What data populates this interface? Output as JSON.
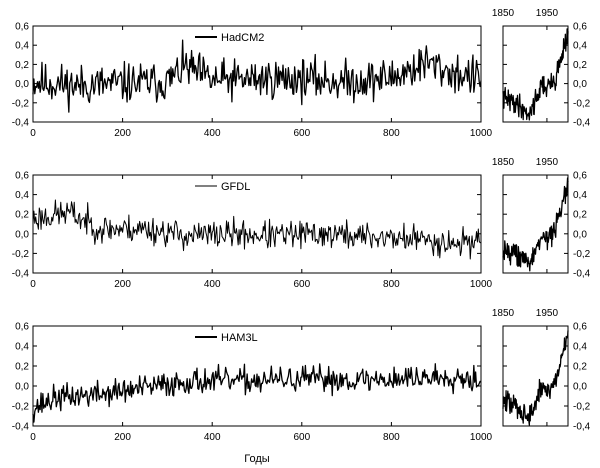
{
  "xlabel": "Годы",
  "chart_data": [
    {
      "type": "line",
      "series": [
        {
          "name": "HadCM2",
          "style": "thick"
        }
      ],
      "x_range": [
        0,
        1000
      ],
      "ylim": [
        -0.4,
        0.6
      ],
      "x_ticks": [
        "0",
        "200",
        "400",
        "600",
        "800",
        "1000"
      ],
      "y_ticks": [
        "-0,4",
        "-0,2",
        "0,0",
        "0,2",
        "0,4",
        "0,6"
      ],
      "profile": [
        [
          0,
          0.02
        ],
        [
          100,
          -0.02
        ],
        [
          200,
          0.0
        ],
        [
          300,
          0.02
        ],
        [
          340,
          0.18
        ],
        [
          400,
          0.03
        ],
        [
          500,
          0.05
        ],
        [
          600,
          0.05
        ],
        [
          700,
          0.02
        ],
        [
          800,
          0.06
        ],
        [
          880,
          0.22
        ],
        [
          930,
          0.12
        ],
        [
          1000,
          0.05
        ]
      ],
      "noise": 0.13,
      "seed": 11
    },
    {
      "type": "line",
      "series": [
        {
          "name": "GFDL",
          "style": "thin"
        }
      ],
      "x_range": [
        0,
        1000
      ],
      "ylim": [
        -0.4,
        0.6
      ],
      "x_ticks": [
        "0",
        "200",
        "400",
        "600",
        "800",
        "1000"
      ],
      "y_ticks": [
        "-0,4",
        "-0,2",
        "0,0",
        "0,2",
        "0,4",
        "0,6"
      ],
      "profile": [
        [
          0,
          0.15
        ],
        [
          80,
          0.22
        ],
        [
          150,
          0.05
        ],
        [
          250,
          0.05
        ],
        [
          350,
          -0.02
        ],
        [
          450,
          0.0
        ],
        [
          550,
          -0.02
        ],
        [
          650,
          0.0
        ],
        [
          750,
          -0.03
        ],
        [
          850,
          -0.05
        ],
        [
          950,
          -0.1
        ],
        [
          1000,
          -0.05
        ]
      ],
      "noise": 0.09,
      "seed": 23
    },
    {
      "type": "line",
      "series": [
        {
          "name": "HAM3L",
          "style": "thick"
        }
      ],
      "x_range": [
        0,
        1000
      ],
      "ylim": [
        -0.4,
        0.6
      ],
      "x_ticks": [
        "0",
        "200",
        "400",
        "600",
        "800",
        "1000"
      ],
      "y_ticks": [
        "-0,4",
        "-0,2",
        "0,0",
        "0,2",
        "0,4",
        "0,6"
      ],
      "profile": [
        [
          0,
          -0.22
        ],
        [
          50,
          -0.12
        ],
        [
          150,
          -0.08
        ],
        [
          250,
          -0.02
        ],
        [
          350,
          0.05
        ],
        [
          450,
          0.05
        ],
        [
          550,
          0.06
        ],
        [
          650,
          0.07
        ],
        [
          750,
          0.06
        ],
        [
          850,
          0.08
        ],
        [
          950,
          0.1
        ],
        [
          1000,
          0.06
        ]
      ],
      "noise": 0.08,
      "seed": 37
    },
    {
      "type": "line",
      "x_range": [
        1850,
        1998
      ],
      "ylim": [
        -0.4,
        0.6
      ],
      "x_ticks": [
        "1850",
        "1950"
      ],
      "y_ticks": [
        "-0,4",
        "-0,2",
        "0,0",
        "0,2",
        "0,4",
        "0,6"
      ],
      "profile": [
        [
          1850,
          -0.15
        ],
        [
          1880,
          -0.2
        ],
        [
          1910,
          -0.32
        ],
        [
          1940,
          0.0
        ],
        [
          1950,
          -0.05
        ],
        [
          1970,
          0.05
        ],
        [
          1990,
          0.4
        ],
        [
          1998,
          0.52
        ]
      ],
      "noise": 0.07,
      "seed": 41
    },
    {
      "type": "line",
      "x_range": [
        1850,
        1998
      ],
      "ylim": [
        -0.4,
        0.6
      ],
      "x_ticks": [
        "1850",
        "1950"
      ],
      "y_ticks": [
        "-0,4",
        "-0,2",
        "0,0",
        "0,2",
        "0,4",
        "0,6"
      ],
      "profile": [
        [
          1850,
          -0.15
        ],
        [
          1880,
          -0.2
        ],
        [
          1910,
          -0.32
        ],
        [
          1940,
          0.0
        ],
        [
          1950,
          -0.05
        ],
        [
          1970,
          0.05
        ],
        [
          1990,
          0.4
        ],
        [
          1998,
          0.5
        ]
      ],
      "noise": 0.07,
      "seed": 43
    },
    {
      "type": "line",
      "x_range": [
        1850,
        1998
      ],
      "ylim": [
        -0.4,
        0.6
      ],
      "x_ticks": [
        "1850",
        "1950"
      ],
      "y_ticks": [
        "-0,4",
        "-0,2",
        "0,0",
        "0,2",
        "0,4",
        "0,6"
      ],
      "profile": [
        [
          1850,
          -0.15
        ],
        [
          1880,
          -0.2
        ],
        [
          1910,
          -0.32
        ],
        [
          1940,
          0.0
        ],
        [
          1950,
          -0.05
        ],
        [
          1970,
          0.05
        ],
        [
          1990,
          0.4
        ],
        [
          1998,
          0.52
        ]
      ],
      "noise": 0.07,
      "seed": 47
    }
  ]
}
